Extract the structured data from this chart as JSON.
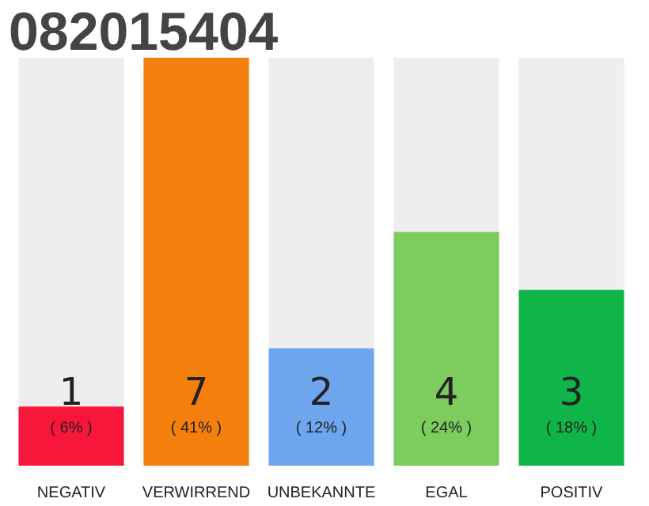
{
  "chart_data": {
    "type": "bar",
    "title": "082015404",
    "categories": [
      "NEGATIV",
      "VERWIRREND",
      "UNBEKANNTE",
      "EGAL",
      "POSITIV"
    ],
    "values": [
      1,
      7,
      2,
      4,
      3
    ],
    "colors": [
      "#f8173b",
      "#f47f0c",
      "#6ea6ee",
      "#7dcc5e",
      "#10b54a"
    ],
    "data_labels": true,
    "annotations": [
      "( 6% )",
      "( 41% )",
      "( 12% )",
      "( 24% )",
      "( 18% )"
    ],
    "grid": false
  }
}
